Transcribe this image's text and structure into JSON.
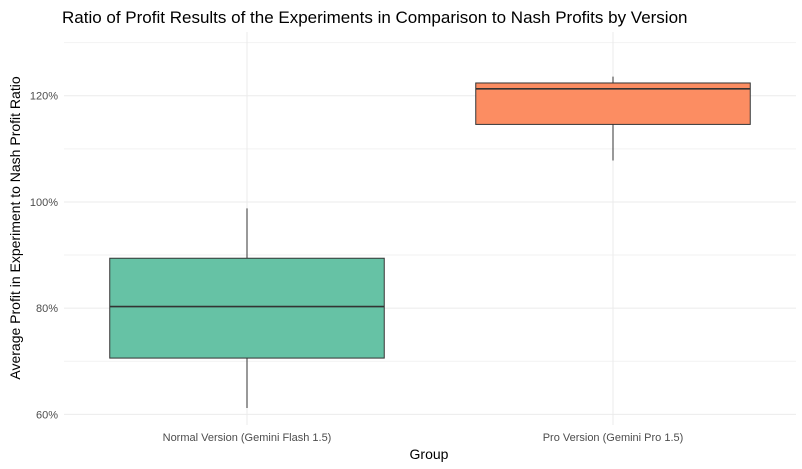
{
  "chart_data": {
    "type": "boxplot",
    "title": "Ratio of Profit Results of the Experiments in Comparison to Nash Profits by Version",
    "xlabel": "Group",
    "ylabel": "Average Profit in Experiment to Nash Profit Ratio",
    "categories": [
      "Normal Version (Gemini Flash 1.5)",
      "Pro Version (Gemini Pro 1.5)"
    ],
    "y_ticks": [
      60,
      80,
      100,
      120
    ],
    "y_tick_labels": [
      "60%",
      "80%",
      "100%",
      "120%"
    ],
    "ylim": [
      58,
      132
    ],
    "grid": true,
    "boxes": [
      {
        "category": "Normal Version (Gemini Flash 1.5)",
        "min": 61.2,
        "q1": 70.6,
        "median": 80.3,
        "q3": 89.4,
        "max": 98.8,
        "color": "#66c2a5"
      },
      {
        "category": "Pro Version (Gemini Pro 1.5)",
        "min": 107.8,
        "q1": 114.6,
        "median": 121.3,
        "q3": 122.4,
        "max": 123.6,
        "color": "#fc8d62"
      }
    ]
  }
}
